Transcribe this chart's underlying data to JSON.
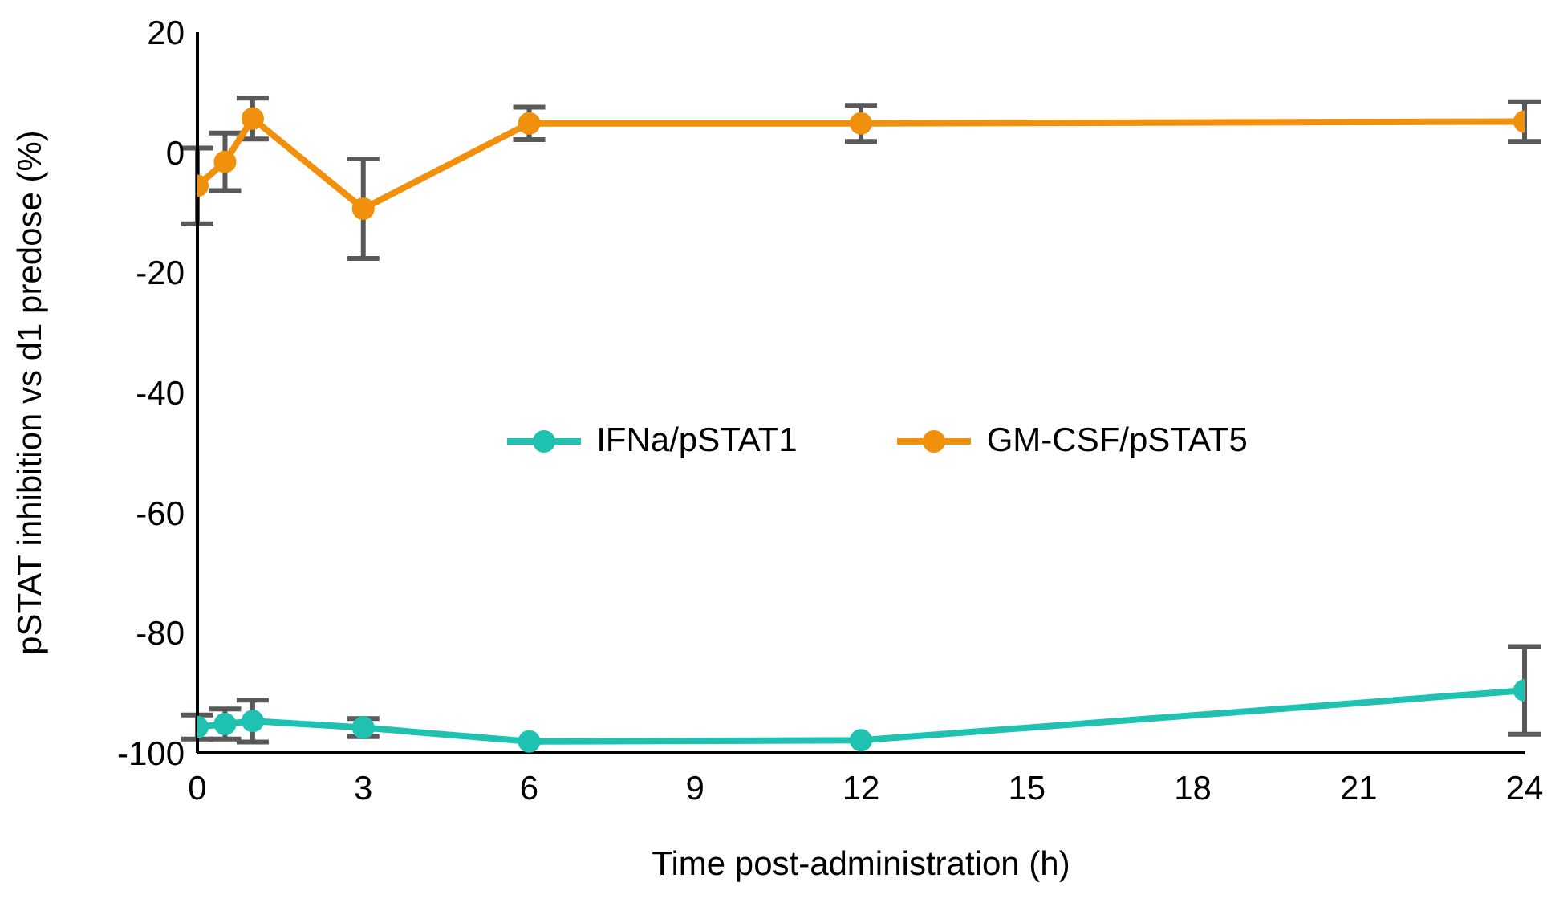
{
  "chart_data": {
    "type": "line",
    "xlabel": "Time post-administration (h)",
    "ylabel": "pSTAT inhibition vs d1 predose (%)",
    "x": [
      0,
      0.5,
      1,
      3,
      6,
      12,
      24
    ],
    "series": [
      {
        "name": "IFNa/pSTAT1",
        "color": "#1fc1b0",
        "values": [
          -95.7,
          -95.2,
          -94.7,
          -95.8,
          -98.1,
          -97.9,
          -89.6
        ],
        "errors": [
          2,
          2.5,
          3.5,
          1.5,
          null,
          null,
          7.3
        ]
      },
      {
        "name": "GM-CSF/pSTAT5",
        "color": "#f0900c",
        "values": [
          -5.6,
          -1.6,
          5.6,
          -9.4,
          4.8,
          4.8,
          5.1
        ],
        "errors": [
          6.3,
          4.8,
          3.4,
          8.3,
          2.7,
          3,
          3.3
        ]
      }
    ],
    "xlim": [
      0,
      24
    ],
    "xticks": [
      0,
      3,
      6,
      9,
      12,
      15,
      18,
      21,
      24
    ],
    "ylim": [
      -100,
      20
    ],
    "yticks": [
      -100,
      -80,
      -60,
      -40,
      -20,
      0,
      20
    ],
    "grid": false,
    "legend": "center",
    "marker": "circle",
    "line_style": "solid"
  }
}
